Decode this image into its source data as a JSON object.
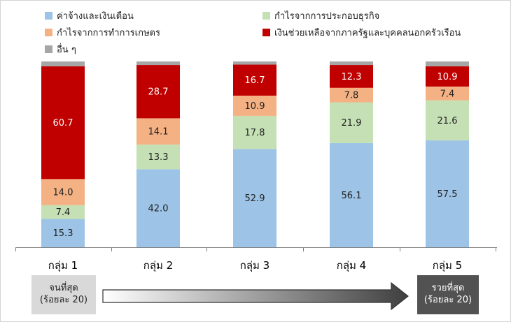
{
  "colors": {
    "wages": "#9dc3e6",
    "business": "#c5e0b4",
    "agri": "#f4b183",
    "transfers": "#c00000",
    "other": "#a6a6a6"
  },
  "chart_data": {
    "type": "bar",
    "stacked": true,
    "categories": [
      "กลุ่ม 1",
      "กลุ่ม 2",
      "กลุ่ม 3",
      "กลุ่ม 4",
      "กลุ่ม 5"
    ],
    "series": [
      {
        "key": "wages",
        "name": "ค่าจ้างและเงินเดือน",
        "values": [
          15.3,
          42.0,
          52.9,
          56.1,
          57.5
        ]
      },
      {
        "key": "business",
        "name": "กำไรจากการประกอบธุรกิจ",
        "values": [
          7.4,
          13.3,
          17.8,
          21.9,
          21.6
        ]
      },
      {
        "key": "agri",
        "name": "กำไรจากการทำการเกษตร",
        "values": [
          14.0,
          14.1,
          10.9,
          7.8,
          7.4
        ]
      },
      {
        "key": "transfers",
        "name": "เงินช่วยเหลือจากภาครัฐและบุคคลนอกครัวเรือน",
        "values": [
          60.7,
          28.7,
          16.7,
          12.3,
          10.9
        ]
      },
      {
        "key": "other",
        "name": "อื่น ๆ",
        "values": [
          2.6,
          1.9,
          1.7,
          1.9,
          2.6
        ]
      }
    ],
    "data_labels": [
      [
        "15.3",
        "42.0",
        "52.9",
        "56.1",
        "57.5"
      ],
      [
        "7.4",
        "13.3",
        "17.8",
        "21.9",
        "21.6"
      ],
      [
        "14.0",
        "14.1",
        "10.9",
        "7.8",
        "7.4"
      ],
      [
        "60.7",
        "28.7",
        "16.7",
        "12.3",
        "10.9"
      ],
      [
        "",
        "",
        "",
        "",
        ""
      ]
    ],
    "ylim": [
      0,
      100
    ],
    "grid": false,
    "legend_position": "top"
  },
  "annotation": {
    "poor_line1": "จนที่สุด",
    "poor_line2": "(ร้อยละ 20)",
    "rich_line1": "รวยที่สุด",
    "rich_line2": "(ร้อยละ 20)"
  }
}
